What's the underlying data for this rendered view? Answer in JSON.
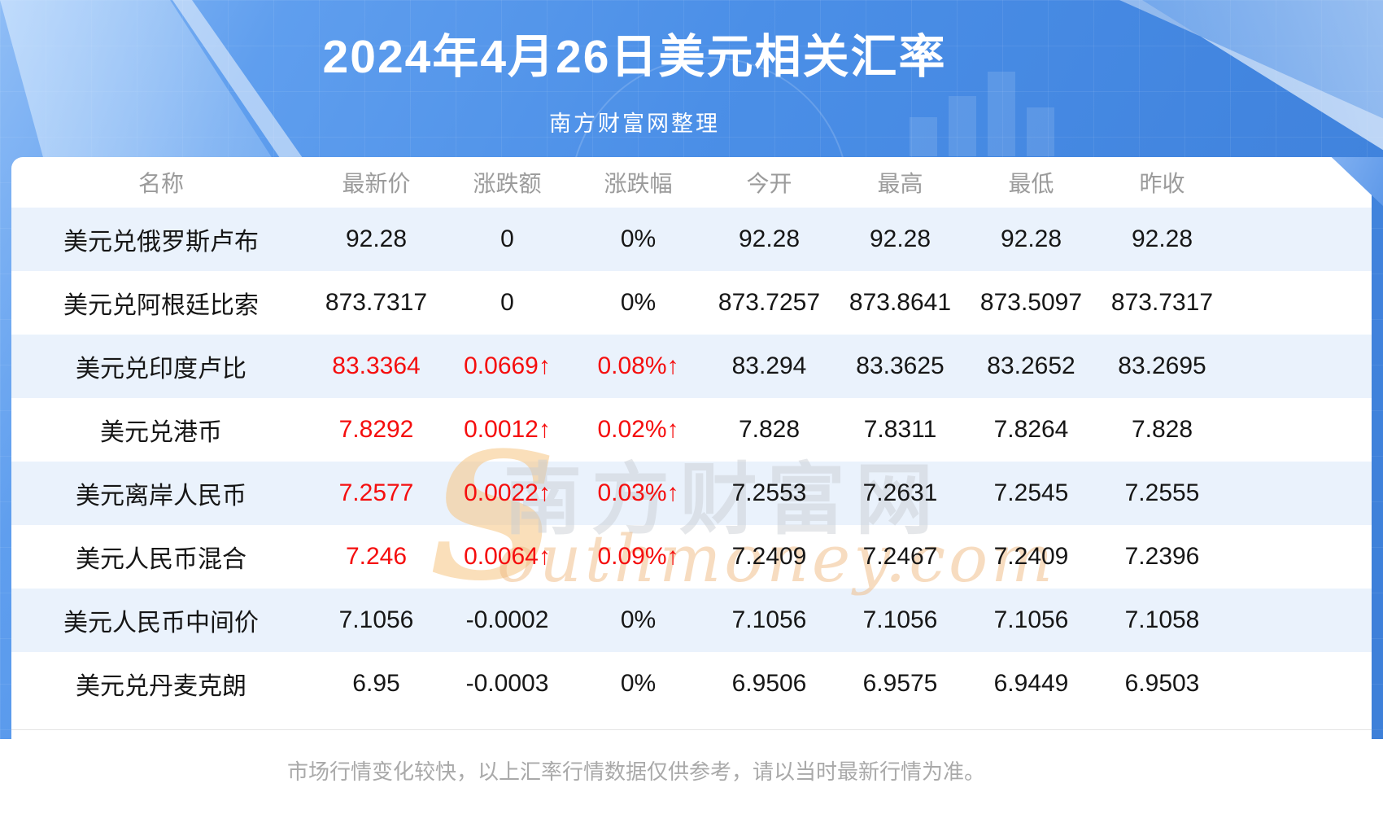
{
  "page": {
    "footer_note": "市场行情变化较快，以上汇率行情数据仅供参考，请以当时最新行情为准。"
  },
  "watermark": {
    "initial": "S",
    "cjk": "南方财富网",
    "domain": "outhmoney.com"
  },
  "colors": {
    "up_red": "#f50e0e",
    "stripe_blue": "#eaf2fc",
    "background_blue": "#4a8ce8",
    "header_gray": "#9b9b9b"
  },
  "chart_data": {
    "type": "table",
    "title": "2024年4月26日美元相关汇率",
    "subtitle": "南方财富网整理",
    "columns": [
      "名称",
      "最新价",
      "涨跌额",
      "涨跌幅",
      "今开",
      "最高",
      "最低",
      "昨收"
    ],
    "rows": [
      {
        "name": "美元兑俄罗斯卢布",
        "latest": "92.28",
        "change": "0",
        "change_pct": "0%",
        "open": "92.28",
        "high": "92.28",
        "low": "92.28",
        "prev_close": "92.28",
        "up": false
      },
      {
        "name": "美元兑阿根廷比索",
        "latest": "873.7317",
        "change": "0",
        "change_pct": "0%",
        "open": "873.7257",
        "high": "873.8641",
        "low": "873.5097",
        "prev_close": "873.7317",
        "up": false
      },
      {
        "name": "美元兑印度卢比",
        "latest": "83.3364",
        "change": "0.0669↑",
        "change_pct": "0.08%↑",
        "open": "83.294",
        "high": "83.3625",
        "low": "83.2652",
        "prev_close": "83.2695",
        "up": true
      },
      {
        "name": "美元兑港币",
        "latest": "7.8292",
        "change": "0.0012↑",
        "change_pct": "0.02%↑",
        "open": "7.828",
        "high": "7.8311",
        "low": "7.8264",
        "prev_close": "7.828",
        "up": true
      },
      {
        "name": "美元离岸人民币",
        "latest": "7.2577",
        "change": "0.0022↑",
        "change_pct": "0.03%↑",
        "open": "7.2553",
        "high": "7.2631",
        "low": "7.2545",
        "prev_close": "7.2555",
        "up": true
      },
      {
        "name": "美元人民币混合",
        "latest": "7.246",
        "change": "0.0064↑",
        "change_pct": "0.09%↑",
        "open": "7.2409",
        "high": "7.2467",
        "low": "7.2409",
        "prev_close": "7.2396",
        "up": true
      },
      {
        "name": "美元人民币中间价",
        "latest": "7.1056",
        "change": "-0.0002",
        "change_pct": "0%",
        "open": "7.1056",
        "high": "7.1056",
        "low": "7.1056",
        "prev_close": "7.1058",
        "up": false
      },
      {
        "name": "美元兑丹麦克朗",
        "latest": "6.95",
        "change": "-0.0003",
        "change_pct": "0%",
        "open": "6.9506",
        "high": "6.9575",
        "low": "6.9449",
        "prev_close": "6.9503",
        "up": false
      }
    ]
  }
}
